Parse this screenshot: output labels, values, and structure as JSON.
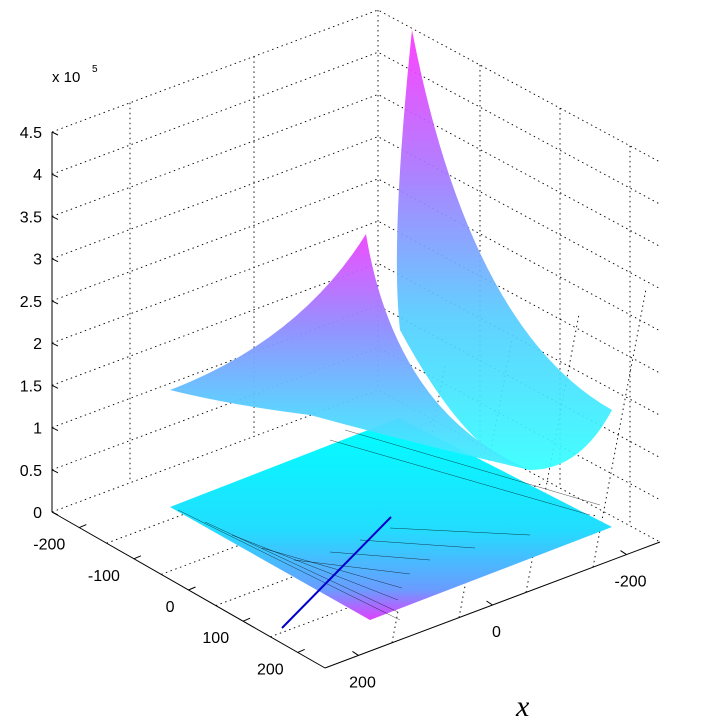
{
  "chart_data": {
    "type": "surface3d",
    "title": "",
    "xlabel": "x",
    "ylabel": "",
    "zlabel": "",
    "z_multiplier": {
      "base": "x 10",
      "exponent": "5"
    },
    "x_ticks": [
      "-200",
      "0",
      "200"
    ],
    "y_ticks": [
      "-200",
      "-100",
      "0",
      "100",
      "200"
    ],
    "z_ticks": [
      "0",
      "0.5",
      "1",
      "1.5",
      "2",
      "2.5",
      "3",
      "3.5",
      "4",
      "4.5"
    ],
    "xlim": [
      -250,
      250
    ],
    "ylim": [
      -250,
      250
    ],
    "zlim": [
      0,
      450000
    ],
    "grid": true,
    "series": [
      {
        "kind": "upper-surface",
        "corner_values_z": [
          145000,
          440000,
          145000,
          5000
        ],
        "colormap": [
          "#33ffff",
          "#ff33ff"
        ]
      },
      {
        "kind": "floor-plane",
        "z": 0,
        "colormap": [
          "#00ffff",
          "#ff00ff"
        ]
      },
      {
        "kind": "line",
        "color": "#0000cc"
      }
    ]
  }
}
